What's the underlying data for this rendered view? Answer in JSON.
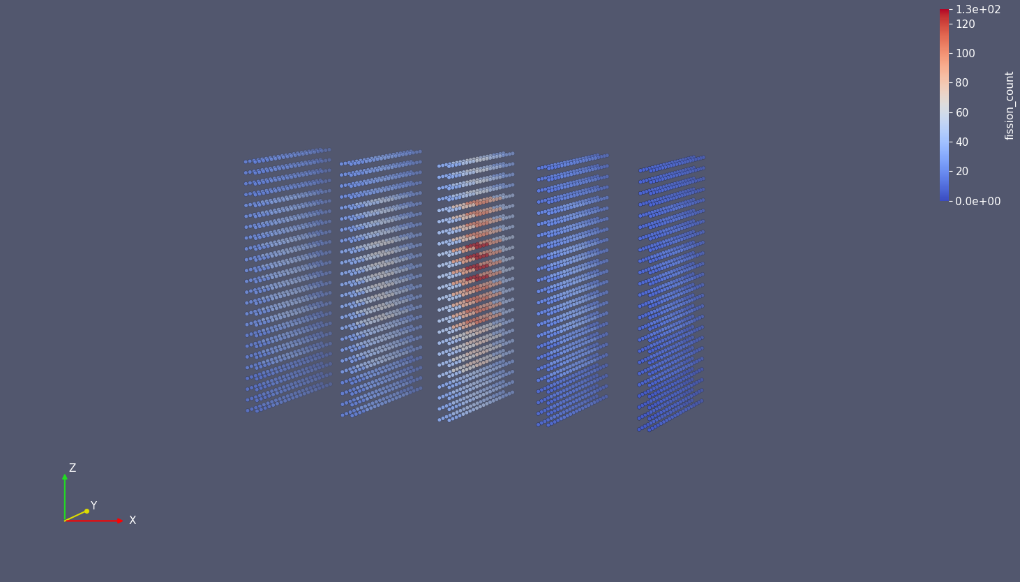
{
  "chart_data": {
    "type": "scatter3d",
    "tick_labels": false,
    "axis_labels": {
      "x": "X",
      "y": "Y",
      "z": "Z"
    },
    "colorbar": {
      "label": "fission_count",
      "clim": [
        0,
        130
      ],
      "ticks": [
        {
          "value": 0,
          "label": "0.0e+00"
        },
        20,
        40,
        60,
        80,
        100,
        120,
        {
          "value": 130,
          "label": "1.3e+02"
        }
      ]
    },
    "slabs": [
      {
        "values": [
          [
            20,
            25,
            25,
            25,
            20
          ],
          [
            25,
            35,
            40,
            35,
            25
          ],
          [
            25,
            40,
            45,
            40,
            25
          ],
          [
            25,
            40,
            45,
            40,
            25
          ],
          [
            20,
            30,
            35,
            30,
            20
          ],
          [
            15,
            20,
            20,
            20,
            15
          ]
        ]
      },
      {
        "values": [
          [
            25,
            30,
            35,
            30,
            25
          ],
          [
            30,
            45,
            55,
            45,
            30
          ],
          [
            35,
            55,
            65,
            55,
            35
          ],
          [
            35,
            55,
            65,
            55,
            35
          ],
          [
            30,
            45,
            50,
            45,
            30
          ],
          [
            20,
            30,
            30,
            30,
            20
          ]
        ]
      },
      {
        "values": [
          [
            35,
            50,
            60,
            50,
            35
          ],
          [
            45,
            75,
            100,
            85,
            50
          ],
          [
            50,
            90,
            125,
            95,
            55
          ],
          [
            50,
            85,
            105,
            90,
            50
          ],
          [
            45,
            65,
            75,
            65,
            45
          ],
          [
            35,
            45,
            50,
            45,
            35
          ]
        ]
      },
      {
        "values": [
          [
            15,
            20,
            20,
            20,
            15
          ],
          [
            20,
            25,
            30,
            25,
            20
          ],
          [
            20,
            30,
            35,
            30,
            20
          ],
          [
            20,
            30,
            35,
            30,
            20
          ],
          [
            15,
            25,
            25,
            25,
            15
          ],
          [
            10,
            15,
            15,
            15,
            10
          ]
        ]
      },
      {
        "values": [
          [
            8,
            10,
            10,
            10,
            8
          ],
          [
            10,
            12,
            15,
            12,
            10
          ],
          [
            10,
            15,
            18,
            15,
            10
          ],
          [
            10,
            15,
            18,
            15,
            10
          ],
          [
            8,
            12,
            12,
            12,
            8
          ],
          [
            5,
            8,
            8,
            8,
            5
          ]
        ]
      }
    ]
  }
}
